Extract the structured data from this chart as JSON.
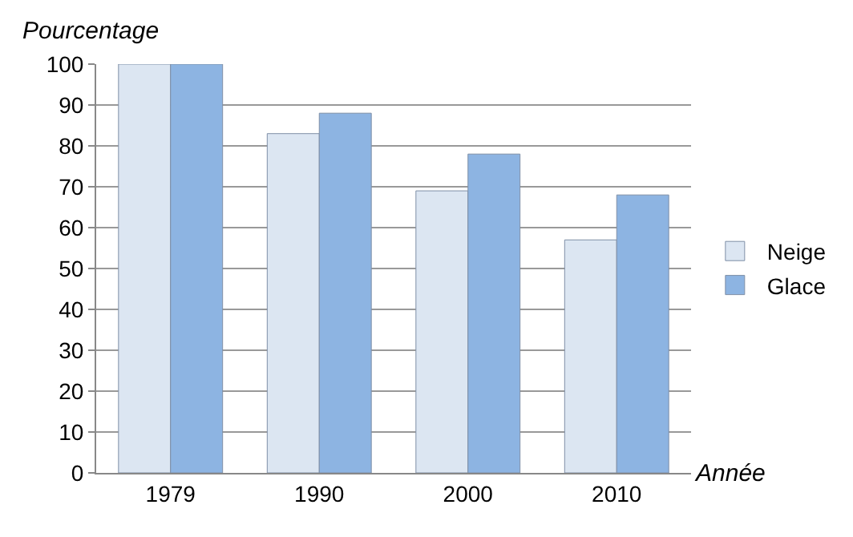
{
  "chart_data": {
    "type": "bar",
    "ylabel": "Pourcentage",
    "xlabel": "Année",
    "categories": [
      "1979",
      "1990",
      "2000",
      "2010"
    ],
    "series": [
      {
        "name": "Neige",
        "color": "#dce6f2",
        "values": [
          100,
          83,
          69,
          57
        ]
      },
      {
        "name": "Glace",
        "color": "#8db4e2",
        "values": [
          100,
          88,
          78,
          68
        ]
      }
    ],
    "ylim": [
      0,
      100
    ],
    "yticks": [
      0,
      10,
      20,
      30,
      40,
      50,
      60,
      70,
      80,
      90,
      100
    ],
    "grid": "y",
    "legend": "right"
  }
}
